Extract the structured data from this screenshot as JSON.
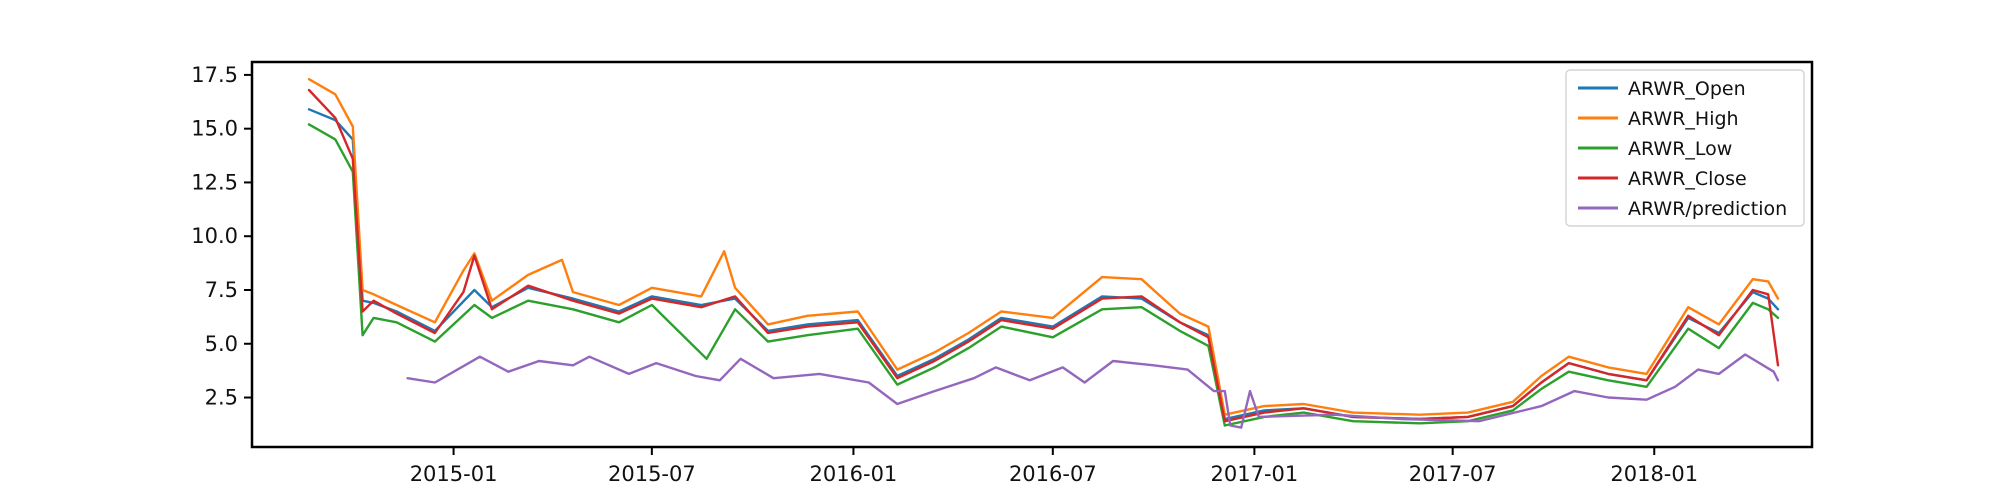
{
  "chart_data": {
    "type": "line",
    "title": "",
    "xlabel": "",
    "ylabel": "",
    "x_tick_labels": [
      "2015-01",
      "2015-07",
      "2016-01",
      "2016-07",
      "2017-01",
      "2017-07",
      "2018-01"
    ],
    "y_tick_labels": [
      "2.5",
      "5.0",
      "7.5",
      "10.0",
      "12.5",
      "15.0",
      "17.5"
    ],
    "y_tick_values": [
      2.5,
      5.0,
      7.5,
      10.0,
      12.5,
      15.0,
      17.5
    ],
    "xlim": [
      "2014-07-01",
      "2018-05-25"
    ],
    "ylim": [
      0.2,
      18.1
    ],
    "grid": false,
    "legend_position": "top-right",
    "series": [
      {
        "name": "ARWR_Open",
        "color": "#1f77b4",
        "points": [
          [
            "2014-08-22",
            15.9
          ],
          [
            "2014-09-15",
            15.4
          ],
          [
            "2014-10-01",
            14.5
          ],
          [
            "2014-10-10",
            7.0
          ],
          [
            "2014-10-20",
            6.9
          ],
          [
            "2014-11-10",
            6.5
          ],
          [
            "2014-12-15",
            5.6
          ],
          [
            "2015-01-20",
            7.5
          ],
          [
            "2015-02-05",
            6.7
          ],
          [
            "2015-03-10",
            7.6
          ],
          [
            "2015-04-20",
            7.1
          ],
          [
            "2015-06-01",
            6.5
          ],
          [
            "2015-07-01",
            7.2
          ],
          [
            "2015-08-15",
            6.8
          ],
          [
            "2015-09-15",
            7.1
          ],
          [
            "2015-10-15",
            5.6
          ],
          [
            "2015-11-20",
            5.9
          ],
          [
            "2016-01-05",
            6.1
          ],
          [
            "2016-02-10",
            3.5
          ],
          [
            "2016-03-15",
            4.3
          ],
          [
            "2016-04-15",
            5.2
          ],
          [
            "2016-05-15",
            6.2
          ],
          [
            "2016-07-01",
            5.8
          ],
          [
            "2016-08-15",
            7.2
          ],
          [
            "2016-09-20",
            7.1
          ],
          [
            "2016-10-25",
            6.0
          ],
          [
            "2016-11-20",
            5.4
          ],
          [
            "2016-12-05",
            1.5
          ],
          [
            "2017-01-10",
            1.9
          ],
          [
            "2017-02-15",
            2.0
          ],
          [
            "2017-04-01",
            1.6
          ],
          [
            "2017-06-01",
            1.5
          ],
          [
            "2017-07-15",
            1.6
          ],
          [
            "2017-08-25",
            2.1
          ],
          [
            "2017-09-20",
            3.2
          ],
          [
            "2017-10-15",
            4.1
          ],
          [
            "2017-11-20",
            3.6
          ],
          [
            "2017-12-25",
            3.3
          ],
          [
            "2018-02-01",
            6.2
          ],
          [
            "2018-03-01",
            5.5
          ],
          [
            "2018-04-01",
            7.4
          ],
          [
            "2018-04-15",
            7.1
          ],
          [
            "2018-04-24",
            6.6
          ]
        ]
      },
      {
        "name": "ARWR_High",
        "color": "#ff7f0e",
        "points": [
          [
            "2014-08-22",
            17.3
          ],
          [
            "2014-09-15",
            16.6
          ],
          [
            "2014-10-01",
            15.1
          ],
          [
            "2014-10-10",
            7.5
          ],
          [
            "2014-10-20",
            7.3
          ],
          [
            "2014-11-10",
            6.8
          ],
          [
            "2014-12-15",
            6.0
          ],
          [
            "2015-01-10",
            8.4
          ],
          [
            "2015-01-20",
            9.2
          ],
          [
            "2015-02-05",
            7.0
          ],
          [
            "2015-03-10",
            8.2
          ],
          [
            "2015-04-10",
            8.9
          ],
          [
            "2015-04-20",
            7.4
          ],
          [
            "2015-06-01",
            6.8
          ],
          [
            "2015-07-01",
            7.6
          ],
          [
            "2015-08-15",
            7.2
          ],
          [
            "2015-09-05",
            9.3
          ],
          [
            "2015-09-15",
            7.6
          ],
          [
            "2015-10-15",
            5.9
          ],
          [
            "2015-11-20",
            6.3
          ],
          [
            "2016-01-05",
            6.5
          ],
          [
            "2016-02-10",
            3.8
          ],
          [
            "2016-03-15",
            4.6
          ],
          [
            "2016-04-15",
            5.5
          ],
          [
            "2016-05-15",
            6.5
          ],
          [
            "2016-07-01",
            6.2
          ],
          [
            "2016-08-15",
            8.1
          ],
          [
            "2016-09-20",
            8.0
          ],
          [
            "2016-10-25",
            6.4
          ],
          [
            "2016-11-20",
            5.8
          ],
          [
            "2016-12-05",
            1.7
          ],
          [
            "2017-01-10",
            2.1
          ],
          [
            "2017-02-15",
            2.2
          ],
          [
            "2017-04-01",
            1.8
          ],
          [
            "2017-06-01",
            1.7
          ],
          [
            "2017-07-15",
            1.8
          ],
          [
            "2017-08-25",
            2.3
          ],
          [
            "2017-09-20",
            3.5
          ],
          [
            "2017-10-15",
            4.4
          ],
          [
            "2017-11-20",
            3.9
          ],
          [
            "2017-12-25",
            3.6
          ],
          [
            "2018-02-01",
            6.7
          ],
          [
            "2018-03-01",
            5.9
          ],
          [
            "2018-04-01",
            8.0
          ],
          [
            "2018-04-15",
            7.9
          ],
          [
            "2018-04-24",
            7.1
          ]
        ]
      },
      {
        "name": "ARWR_Low",
        "color": "#2ca02c",
        "points": [
          [
            "2014-08-22",
            15.2
          ],
          [
            "2014-09-15",
            14.5
          ],
          [
            "2014-10-01",
            13.0
          ],
          [
            "2014-10-10",
            5.4
          ],
          [
            "2014-10-20",
            6.2
          ],
          [
            "2014-11-10",
            6.0
          ],
          [
            "2014-12-15",
            5.1
          ],
          [
            "2015-01-20",
            6.8
          ],
          [
            "2015-02-05",
            6.2
          ],
          [
            "2015-03-10",
            7.0
          ],
          [
            "2015-04-20",
            6.6
          ],
          [
            "2015-06-01",
            6.0
          ],
          [
            "2015-07-01",
            6.8
          ],
          [
            "2015-08-20",
            4.3
          ],
          [
            "2015-09-15",
            6.6
          ],
          [
            "2015-10-15",
            5.1
          ],
          [
            "2015-11-20",
            5.4
          ],
          [
            "2016-01-05",
            5.7
          ],
          [
            "2016-02-10",
            3.1
          ],
          [
            "2016-03-15",
            3.9
          ],
          [
            "2016-04-15",
            4.8
          ],
          [
            "2016-05-15",
            5.8
          ],
          [
            "2016-07-01",
            5.3
          ],
          [
            "2016-08-15",
            6.6
          ],
          [
            "2016-09-20",
            6.7
          ],
          [
            "2016-10-25",
            5.6
          ],
          [
            "2016-11-20",
            4.9
          ],
          [
            "2016-12-05",
            1.2
          ],
          [
            "2017-01-10",
            1.6
          ],
          [
            "2017-02-15",
            1.8
          ],
          [
            "2017-04-01",
            1.4
          ],
          [
            "2017-06-01",
            1.3
          ],
          [
            "2017-07-15",
            1.4
          ],
          [
            "2017-08-25",
            1.9
          ],
          [
            "2017-09-20",
            2.9
          ],
          [
            "2017-10-15",
            3.7
          ],
          [
            "2017-11-20",
            3.3
          ],
          [
            "2017-12-25",
            3.0
          ],
          [
            "2018-02-01",
            5.7
          ],
          [
            "2018-03-01",
            4.8
          ],
          [
            "2018-04-01",
            6.9
          ],
          [
            "2018-04-15",
            6.6
          ],
          [
            "2018-04-24",
            6.2
          ]
        ]
      },
      {
        "name": "ARWR_Close",
        "color": "#d62728",
        "points": [
          [
            "2014-08-22",
            16.8
          ],
          [
            "2014-09-15",
            15.5
          ],
          [
            "2014-10-01",
            13.6
          ],
          [
            "2014-10-10",
            6.5
          ],
          [
            "2014-10-20",
            7.0
          ],
          [
            "2014-11-10",
            6.4
          ],
          [
            "2014-12-15",
            5.5
          ],
          [
            "2015-01-10",
            7.4
          ],
          [
            "2015-01-20",
            9.1
          ],
          [
            "2015-02-05",
            6.6
          ],
          [
            "2015-03-10",
            7.7
          ],
          [
            "2015-04-20",
            7.0
          ],
          [
            "2015-06-01",
            6.4
          ],
          [
            "2015-07-01",
            7.1
          ],
          [
            "2015-08-15",
            6.7
          ],
          [
            "2015-09-15",
            7.2
          ],
          [
            "2015-10-15",
            5.5
          ],
          [
            "2015-11-20",
            5.8
          ],
          [
            "2016-01-05",
            6.0
          ],
          [
            "2016-02-10",
            3.4
          ],
          [
            "2016-03-15",
            4.2
          ],
          [
            "2016-04-15",
            5.1
          ],
          [
            "2016-05-15",
            6.1
          ],
          [
            "2016-07-01",
            5.7
          ],
          [
            "2016-08-15",
            7.1
          ],
          [
            "2016-09-20",
            7.2
          ],
          [
            "2016-10-25",
            6.0
          ],
          [
            "2016-11-20",
            5.3
          ],
          [
            "2016-12-05",
            1.4
          ],
          [
            "2017-01-10",
            1.8
          ],
          [
            "2017-02-15",
            2.0
          ],
          [
            "2017-04-01",
            1.6
          ],
          [
            "2017-06-01",
            1.5
          ],
          [
            "2017-07-15",
            1.6
          ],
          [
            "2017-08-25",
            2.1
          ],
          [
            "2017-09-20",
            3.2
          ],
          [
            "2017-10-15",
            4.1
          ],
          [
            "2017-11-20",
            3.6
          ],
          [
            "2017-12-25",
            3.3
          ],
          [
            "2018-02-01",
            6.3
          ],
          [
            "2018-03-01",
            5.4
          ],
          [
            "2018-04-01",
            7.5
          ],
          [
            "2018-04-15",
            7.3
          ],
          [
            "2018-04-24",
            4.0
          ]
        ]
      },
      {
        "name": "ARWR/prediction",
        "color": "#9467bd",
        "points": [
          [
            "2014-11-20",
            3.4
          ],
          [
            "2014-12-15",
            3.2
          ],
          [
            "2015-01-25",
            4.4
          ],
          [
            "2015-02-20",
            3.7
          ],
          [
            "2015-03-20",
            4.2
          ],
          [
            "2015-04-20",
            4.0
          ],
          [
            "2015-05-05",
            4.4
          ],
          [
            "2015-06-10",
            3.6
          ],
          [
            "2015-07-05",
            4.1
          ],
          [
            "2015-08-10",
            3.5
          ],
          [
            "2015-09-01",
            3.3
          ],
          [
            "2015-09-20",
            4.3
          ],
          [
            "2015-10-20",
            3.4
          ],
          [
            "2015-12-01",
            3.6
          ],
          [
            "2016-01-15",
            3.2
          ],
          [
            "2016-02-10",
            2.2
          ],
          [
            "2016-03-15",
            2.8
          ],
          [
            "2016-04-20",
            3.4
          ],
          [
            "2016-05-10",
            3.9
          ],
          [
            "2016-06-10",
            3.3
          ],
          [
            "2016-07-10",
            3.9
          ],
          [
            "2016-07-30",
            3.2
          ],
          [
            "2016-08-25",
            4.2
          ],
          [
            "2016-10-01",
            4.0
          ],
          [
            "2016-11-01",
            3.8
          ],
          [
            "2016-11-25",
            2.8
          ],
          [
            "2016-12-05",
            2.8
          ],
          [
            "2016-12-10",
            1.2
          ],
          [
            "2016-12-20",
            1.1
          ],
          [
            "2016-12-28",
            2.8
          ],
          [
            "2017-01-05",
            1.6
          ],
          [
            "2017-03-15",
            1.7
          ],
          [
            "2017-05-15",
            1.5
          ],
          [
            "2017-07-25",
            1.4
          ],
          [
            "2017-09-20",
            2.1
          ],
          [
            "2017-10-20",
            2.8
          ],
          [
            "2017-11-20",
            2.5
          ],
          [
            "2017-12-25",
            2.4
          ],
          [
            "2018-01-20",
            3.0
          ],
          [
            "2018-02-10",
            3.8
          ],
          [
            "2018-03-01",
            3.6
          ],
          [
            "2018-03-25",
            4.5
          ],
          [
            "2018-04-20",
            3.7
          ],
          [
            "2018-04-24",
            3.3
          ]
        ]
      }
    ]
  }
}
